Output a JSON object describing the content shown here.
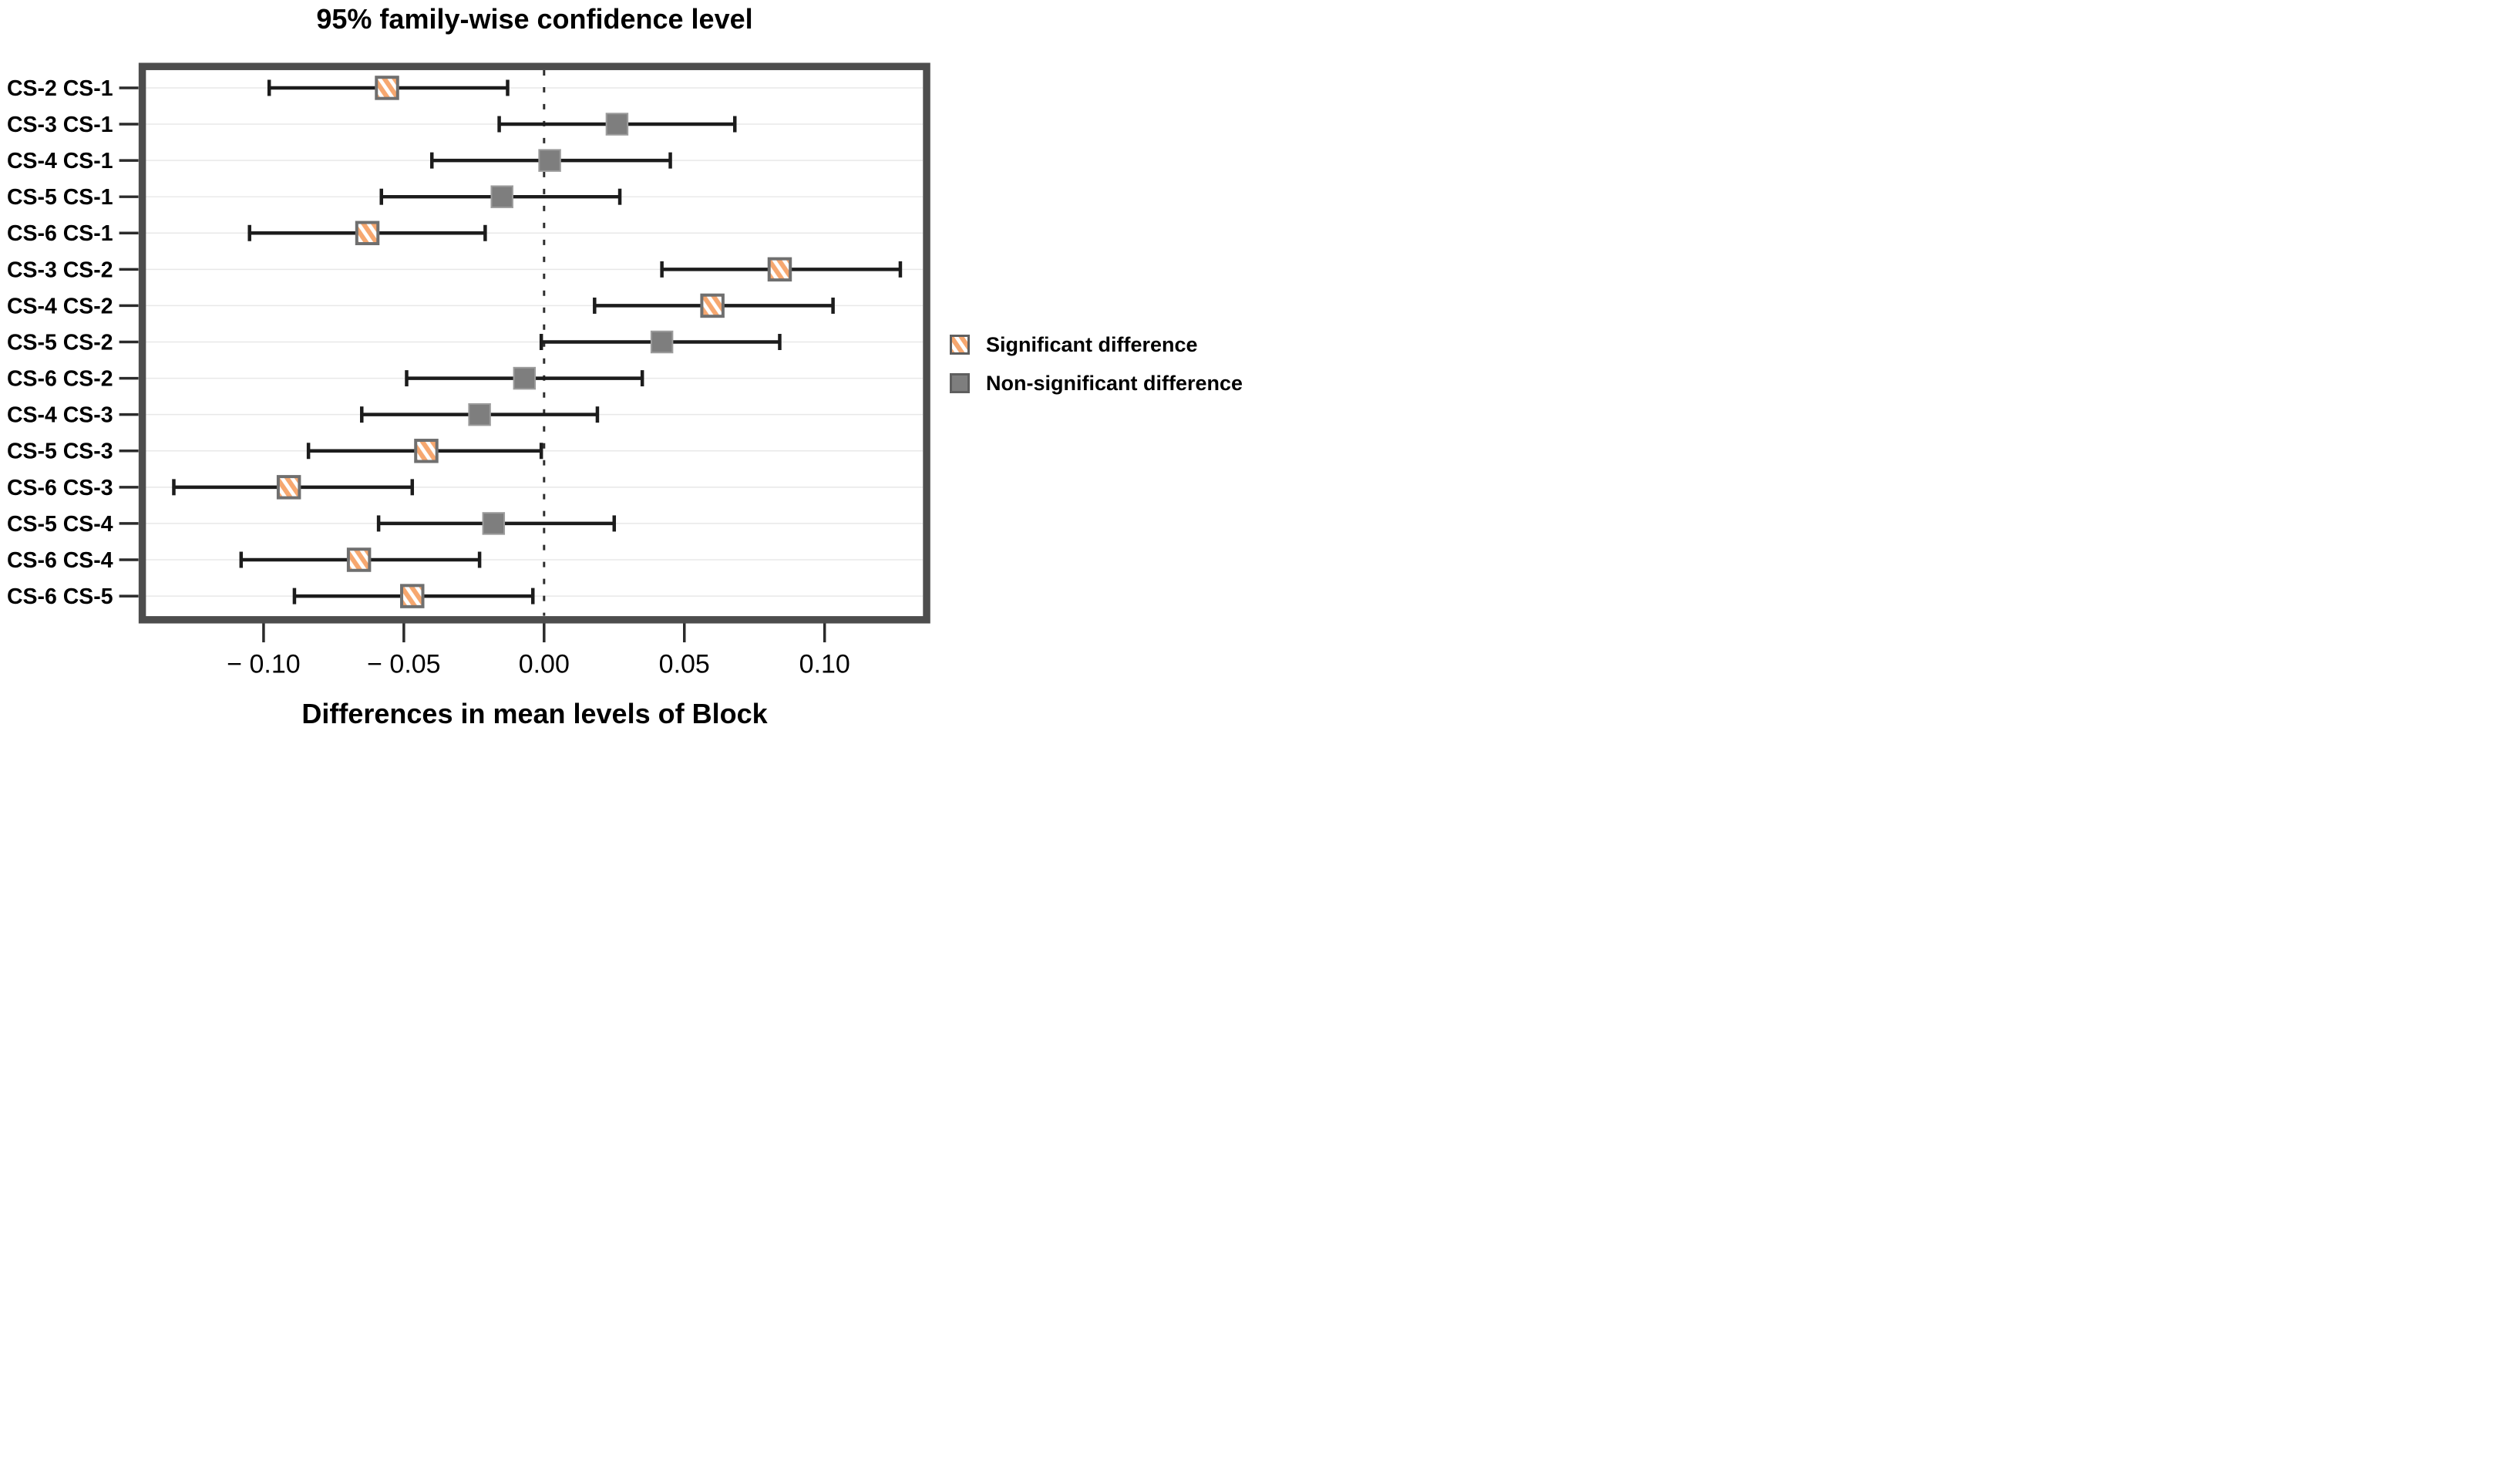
{
  "page": {
    "title": "95% family-wise confidence level",
    "x_axis_title": "Differences in mean levels of Block"
  },
  "legend": {
    "items": [
      {
        "label": "Significant difference",
        "type": "significant"
      },
      {
        "label": "Non-significant difference",
        "type": "non_significant"
      }
    ]
  },
  "colors": {
    "frame": "#4D4D4D",
    "grid": "#E8E8E8",
    "zero_line": "#2E2E2E",
    "error_bar": "#1C1C1C",
    "tick": "#2B2B2B",
    "text": "#000000",
    "marker_gray_fill": "#7E7E7E",
    "marker_gray_border": "#9C9C9C",
    "marker_hatch_stripe": "#F6A76F",
    "marker_hatch_border": "#6F6F6F",
    "legend_swatch_border": "#5F5F5F"
  },
  "chart_data": {
    "type": "scatter",
    "subtype": "tukey-hsd-confidence-intervals",
    "title": "95% family-wise confidence level",
    "xlabel": "Differences in mean levels of Block",
    "ylabel": "",
    "xlim": [
      -0.142,
      0.135
    ],
    "xticks": [
      -0.1,
      -0.05,
      0.0,
      0.05,
      0.1
    ],
    "xtick_labels": [
      "− 0.10",
      "− 0.05",
      "0.00",
      "0.05",
      "0.10"
    ],
    "grid": "horizontal",
    "zero_reference_line": 0.0,
    "legend_position": "right-middle",
    "legend_entries": [
      "Significant difference",
      "Non-significant difference"
    ],
    "comparisons": [
      {
        "label": "CS-2 CS-1",
        "diff": -0.056,
        "lower": -0.098,
        "upper": -0.013,
        "significant": true
      },
      {
        "label": "CS-3 CS-1",
        "diff": 0.026,
        "lower": -0.016,
        "upper": 0.068,
        "significant": false
      },
      {
        "label": "CS-4 CS-1",
        "diff": 0.002,
        "lower": -0.04,
        "upper": 0.045,
        "significant": false
      },
      {
        "label": "CS-5 CS-1",
        "diff": -0.015,
        "lower": -0.058,
        "upper": 0.027,
        "significant": false
      },
      {
        "label": "CS-6 CS-1",
        "diff": -0.063,
        "lower": -0.105,
        "upper": -0.021,
        "significant": true
      },
      {
        "label": "CS-3 CS-2",
        "diff": 0.084,
        "lower": 0.042,
        "upper": 0.127,
        "significant": true
      },
      {
        "label": "CS-4 CS-2",
        "diff": 0.06,
        "lower": 0.018,
        "upper": 0.103,
        "significant": true
      },
      {
        "label": "CS-5 CS-2",
        "diff": 0.042,
        "lower": -0.001,
        "upper": 0.084,
        "significant": false
      },
      {
        "label": "CS-6 CS-2",
        "diff": -0.007,
        "lower": -0.049,
        "upper": 0.035,
        "significant": false
      },
      {
        "label": "CS-4 CS-3",
        "diff": -0.023,
        "lower": -0.065,
        "upper": 0.019,
        "significant": false
      },
      {
        "label": "CS-5 CS-3",
        "diff": -0.042,
        "lower": -0.084,
        "upper": -0.001,
        "significant": true
      },
      {
        "label": "CS-6 CS-3",
        "diff": -0.091,
        "lower": -0.132,
        "upper": -0.047,
        "significant": true
      },
      {
        "label": "CS-5 CS-4",
        "diff": -0.018,
        "lower": -0.059,
        "upper": 0.025,
        "significant": false
      },
      {
        "label": "CS-6 CS-4",
        "diff": -0.066,
        "lower": -0.108,
        "upper": -0.023,
        "significant": true
      },
      {
        "label": "CS-6 CS-5",
        "diff": -0.047,
        "lower": -0.089,
        "upper": -0.004,
        "significant": true
      }
    ]
  }
}
